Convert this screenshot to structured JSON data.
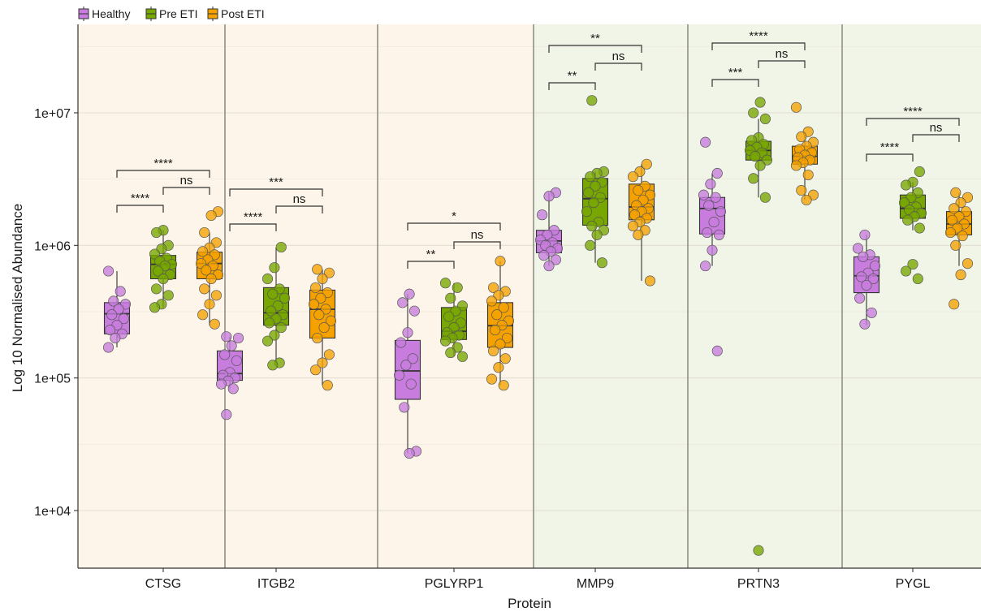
{
  "chart_data": {
    "type": "box",
    "xlabel": "Protein",
    "ylabel": "Log 10 Normalised Abundance",
    "yscale": "log10",
    "ylim": [
      3000,
      50000000
    ],
    "yticks": [
      {
        "value": 10000,
        "label": "1e+04"
      },
      {
        "value": 100000,
        "label": "1e+05"
      },
      {
        "value": 1000000,
        "label": "1e+06"
      },
      {
        "value": 10000000,
        "label": "1e+07"
      }
    ],
    "legend": {
      "position": "top-left",
      "entries": [
        {
          "name": "Healthy",
          "color": "#c77cde"
        },
        {
          "name": "Pre ETI",
          "color": "#77a700"
        },
        {
          "name": "Post ETI",
          "color": "#f5a200"
        }
      ]
    },
    "panel_groups": [
      {
        "proteins": [
          "CTSG",
          "ITGB2",
          "PGLYRP1"
        ],
        "background": "#fdf5e9"
      },
      {
        "proteins": [
          "MMP9",
          "PRTN3",
          "PYGL"
        ],
        "background": "#f1f5e8"
      }
    ],
    "categories": [
      "CTSG",
      "ITGB2",
      "PGLYRP1",
      "MMP9",
      "PRTN3",
      "PYGL"
    ],
    "series": [
      {
        "name": "Healthy",
        "color": "#c77cde",
        "boxes": [
          {
            "q1": 215000,
            "median": 305000,
            "q3": 370000,
            "whisker_low": 170000,
            "whisker_high": 640000,
            "points": [
              640000,
              450000,
              380000,
              360000,
              330000,
              300000,
              280000,
              250000,
              230000,
              215000,
              200000,
              170000
            ]
          },
          {
            "q1": 96000,
            "median": 108000,
            "q3": 160000,
            "whisker_low": 82000,
            "whisker_high": 205000,
            "points": [
              205000,
              200000,
              175000,
              150000,
              135000,
              110000,
              105000,
              100000,
              95000,
              90000,
              83000,
              53000
            ]
          },
          {
            "q1": 69000,
            "median": 113000,
            "q3": 192000,
            "whisker_low": 27000,
            "whisker_high": 430000,
            "points": [
              430000,
              370000,
              320000,
              220000,
              185000,
              140000,
              125000,
              105000,
              90000,
              60000,
              28000,
              27000
            ]
          },
          {
            "q1": 880000,
            "median": 1080000,
            "q3": 1300000,
            "whisker_low": 700000,
            "whisker_high": 2500000,
            "points": [
              2500000,
              2350000,
              1700000,
              1300000,
              1200000,
              1100000,
              1050000,
              1000000,
              950000,
              900000,
              840000,
              780000,
              700000
            ]
          },
          {
            "q1": 1220000,
            "median": 1900000,
            "q3": 2300000,
            "whisker_low": 700000,
            "whisker_high": 3500000,
            "points": [
              6000000,
              3500000,
              2900000,
              2400000,
              2300000,
              2000000,
              1800000,
              1500000,
              1250000,
              1200000,
              920000,
              700000,
              160000
            ]
          },
          {
            "q1": 440000,
            "median": 590000,
            "q3": 820000,
            "whisker_low": 250000,
            "whisker_high": 1200000,
            "points": [
              1200000,
              950000,
              850000,
              820000,
              700000,
              620000,
              580000,
              560000,
              500000,
              400000,
              310000,
              255000
            ]
          }
        ]
      },
      {
        "name": "Pre ETI",
        "color": "#77a700",
        "boxes": [
          {
            "q1": 560000,
            "median": 720000,
            "q3": 840000,
            "whisker_low": 340000,
            "whisker_high": 1300000,
            "points": [
              1300000,
              1250000,
              1000000,
              940000,
              860000,
              800000,
              760000,
              720000,
              700000,
              640000,
              600000,
              560000,
              470000,
              420000,
              360000,
              340000
            ]
          },
          {
            "q1": 250000,
            "median": 310000,
            "q3": 480000,
            "whisker_low": 125000,
            "whisker_high": 970000,
            "points": [
              970000,
              680000,
              560000,
              470000,
              430000,
              400000,
              350000,
              320000,
              300000,
              280000,
              260000,
              240000,
              210000,
              190000,
              130000,
              125000
            ]
          },
          {
            "q1": 195000,
            "median": 225000,
            "q3": 340000,
            "whisker_low": 145000,
            "whisker_high": 520000,
            "points": [
              520000,
              480000,
              400000,
              350000,
              320000,
              290000,
              260000,
              240000,
              220000,
              210000,
              200000,
              190000,
              170000,
              155000,
              145000
            ]
          },
          {
            "q1": 1420000,
            "median": 2250000,
            "q3": 3200000,
            "whisker_low": 740000,
            "whisker_high": 3600000,
            "points": [
              12400000,
              3600000,
              3500000,
              3300000,
              3000000,
              2800000,
              2500000,
              2300000,
              2100000,
              1800000,
              1500000,
              1400000,
              1300000,
              1200000,
              1000000,
              740000
            ]
          },
          {
            "q1": 4400000,
            "median": 5200000,
            "q3": 6100000,
            "whisker_low": 2300000,
            "whisker_high": 9000000,
            "points": [
              12000000,
              10000000,
              9000000,
              6500000,
              6200000,
              5800000,
              5500000,
              5200000,
              5000000,
              4700000,
              4400000,
              4000000,
              3200000,
              2300000,
              5000
            ]
          },
          {
            "q1": 1600000,
            "median": 1900000,
            "q3": 2400000,
            "whisker_low": 1300000,
            "whisker_high": 3000000,
            "points": [
              3600000,
              3000000,
              2850000,
              2500000,
              2300000,
              2100000,
              1950000,
              1850000,
              1750000,
              1650000,
              1550000,
              1350000,
              720000,
              640000,
              560000
            ]
          }
        ]
      },
      {
        "name": "Post ETI",
        "color": "#f5a200",
        "boxes": [
          {
            "q1": 560000,
            "median": 730000,
            "q3": 890000,
            "whisker_low": 250000,
            "whisker_high": 1250000,
            "points": [
              1800000,
              1680000,
              1250000,
              1050000,
              960000,
              900000,
              850000,
              780000,
              730000,
              700000,
              650000,
              600000,
              560000,
              470000,
              420000,
              360000,
              300000,
              255000
            ]
          },
          {
            "q1": 200000,
            "median": 330000,
            "q3": 460000,
            "whisker_low": 88000,
            "whisker_high": 660000,
            "points": [
              660000,
              620000,
              560000,
              480000,
              440000,
              400000,
              360000,
              330000,
              300000,
              270000,
              240000,
              200000,
              150000,
              130000,
              115000,
              88000
            ]
          },
          {
            "q1": 170000,
            "median": 248000,
            "q3": 370000,
            "whisker_low": 88000,
            "whisker_high": 760000,
            "points": [
              760000,
              480000,
              450000,
              420000,
              380000,
              340000,
              300000,
              270000,
              250000,
              230000,
              200000,
              180000,
              160000,
              140000,
              120000,
              98000,
              88000
            ]
          },
          {
            "q1": 1560000,
            "median": 1950000,
            "q3": 2900000,
            "whisker_low": 540000,
            "whisker_high": 4100000,
            "points": [
              4100000,
              3600000,
              3300000,
              2800000,
              2600000,
              2400000,
              2200000,
              2000000,
              1900000,
              1800000,
              1700000,
              1600000,
              1500000,
              1400000,
              1300000,
              1200000,
              540000
            ]
          },
          {
            "q1": 4100000,
            "median": 4700000,
            "q3": 5600000,
            "whisker_low": 2200000,
            "whisker_high": 7200000,
            "points": [
              11000000,
              7200000,
              6600000,
              6000000,
              5600000,
              5300000,
              5000000,
              4800000,
              4600000,
              4400000,
              4200000,
              4000000,
              3400000,
              2600000,
              2400000,
              2200000
            ]
          },
          {
            "q1": 1200000,
            "median": 1450000,
            "q3": 1800000,
            "whisker_low": 700000,
            "whisker_high": 2500000,
            "points": [
              2500000,
              2300000,
              2100000,
              1900000,
              1800000,
              1650000,
              1550000,
              1450000,
              1350000,
              1250000,
              1180000,
              1000000,
              730000,
              600000,
              360000
            ]
          }
        ]
      }
    ],
    "significance": [
      {
        "protein": "CTSG",
        "brackets": [
          {
            "from": "Healthy",
            "to": "Pre ETI",
            "label": "****"
          },
          {
            "from": "Pre ETI",
            "to": "Post ETI",
            "label": "ns"
          },
          {
            "from": "Healthy",
            "to": "Post ETI",
            "label": "****"
          }
        ]
      },
      {
        "protein": "ITGB2",
        "brackets": [
          {
            "from": "Healthy",
            "to": "Pre ETI",
            "label": "****"
          },
          {
            "from": "Pre ETI",
            "to": "Post ETI",
            "label": "ns"
          },
          {
            "from": "Healthy",
            "to": "Post ETI",
            "label": "***"
          }
        ]
      },
      {
        "protein": "PGLYRP1",
        "brackets": [
          {
            "from": "Healthy",
            "to": "Pre ETI",
            "label": "**"
          },
          {
            "from": "Pre ETI",
            "to": "Post ETI",
            "label": "ns"
          },
          {
            "from": "Healthy",
            "to": "Post ETI",
            "label": "*"
          }
        ]
      },
      {
        "protein": "MMP9",
        "brackets": [
          {
            "from": "Healthy",
            "to": "Pre ETI",
            "label": "**"
          },
          {
            "from": "Pre ETI",
            "to": "Post ETI",
            "label": "ns"
          },
          {
            "from": "Healthy",
            "to": "Post ETI",
            "label": "**"
          }
        ]
      },
      {
        "protein": "PRTN3",
        "brackets": [
          {
            "from": "Healthy",
            "to": "Pre ETI",
            "label": "***"
          },
          {
            "from": "Pre ETI",
            "to": "Post ETI",
            "label": "ns"
          },
          {
            "from": "Healthy",
            "to": "Post ETI",
            "label": "****"
          }
        ]
      },
      {
        "protein": "PYGL",
        "brackets": [
          {
            "from": "Healthy",
            "to": "Pre ETI",
            "label": "****"
          },
          {
            "from": "Pre ETI",
            "to": "Post ETI",
            "label": "ns"
          },
          {
            "from": "Healthy",
            "to": "Post ETI",
            "label": "****"
          }
        ]
      }
    ]
  }
}
